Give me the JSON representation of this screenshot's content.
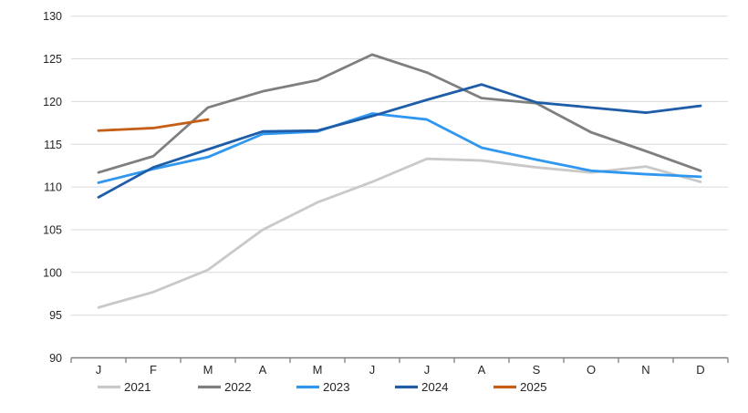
{
  "chart_data": {
    "type": "line",
    "title": "",
    "x_tick_labels": [
      "J",
      "F",
      "M",
      "A",
      "M",
      "J",
      "J",
      "A",
      "S",
      "O",
      "N",
      "D"
    ],
    "y_tick_labels": [
      "90",
      "95",
      "100",
      "105",
      "110",
      "115",
      "120",
      "125",
      "130"
    ],
    "y_axis": {
      "min": 90,
      "max": 130,
      "step": 5
    },
    "grid": "horizontal",
    "legend_position": "bottom",
    "legend_entries": [
      "2021",
      "2022",
      "2023",
      "2024",
      "2025"
    ],
    "series": [
      {
        "name": "2021",
        "color": "#c9c9c9",
        "values": [
          95.9,
          97.7,
          100.3,
          105.0,
          108.2,
          110.6,
          113.3,
          113.1,
          112.3,
          111.7,
          112.4,
          110.6
        ]
      },
      {
        "name": "2022",
        "color": "#7f7f7f",
        "values": [
          111.7,
          113.6,
          119.3,
          121.2,
          122.5,
          125.5,
          123.4,
          120.4,
          119.8,
          116.4,
          114.2,
          111.9
        ]
      },
      {
        "name": "2023",
        "color": "#2f97f0",
        "values": [
          110.5,
          112.1,
          113.5,
          116.2,
          116.5,
          118.6,
          117.9,
          114.6,
          113.2,
          111.9,
          111.5,
          111.2
        ]
      },
      {
        "name": "2024",
        "color": "#1f5da8",
        "values": [
          108.8,
          112.3,
          114.4,
          116.5,
          116.6,
          118.3,
          120.2,
          122.0,
          119.9,
          119.3,
          118.7,
          119.5
        ]
      },
      {
        "name": "2025",
        "color": "#c55f15",
        "values": [
          116.6,
          116.9,
          117.9,
          null,
          null,
          null,
          null,
          null,
          null,
          null,
          null,
          null
        ]
      }
    ],
    "style_colors": {
      "gridline": "#d9d9d9",
      "axis": "#7f7f7f",
      "label": "#262626"
    }
  }
}
